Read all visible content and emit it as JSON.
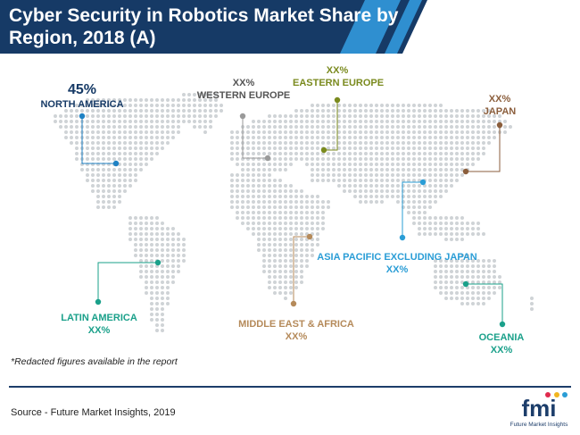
{
  "title": "Cyber Security in Robotics Market Share by Region, 2018 (A)",
  "chart_data": {
    "type": "map",
    "title": "Cyber Security in Robotics Market Share by Region, 2018 (A)",
    "regions": [
      {
        "name": "NORTH AMERICA",
        "value": "45%",
        "color": "#1f82c4"
      },
      {
        "name": "WESTERN EUROPE",
        "value": "XX%",
        "color": "#9a9a9a"
      },
      {
        "name": "EASTERN EUROPE",
        "value": "XX%",
        "color": "#7a8a1e"
      },
      {
        "name": "JAPAN",
        "value": "XX%",
        "color": "#8b5e3c"
      },
      {
        "name": "ASIA PACIFIC EXCLUDING JAPAN",
        "value": "XX%",
        "color": "#2a9dd6"
      },
      {
        "name": "LATIN AMERICA",
        "value": "XX%",
        "color": "#1aa08a"
      },
      {
        "name": "MIDDLE EAST & AFRICA",
        "value": "XX%",
        "color": "#b58a5a"
      },
      {
        "name": "OCEANIA",
        "value": "XX%",
        "color": "#1aa08a"
      }
    ]
  },
  "labels": {
    "na_value": "45%",
    "na_name": "NORTH AMERICA",
    "we_value": "XX%",
    "we_name": "WESTERN EUROPE",
    "ee_value": "XX%",
    "ee_name": "EASTERN EUROPE",
    "jp_value": "XX%",
    "jp_name": "JAPAN",
    "ap_name": "ASIA PACIFIC EXCLUDING JAPAN",
    "ap_value": "XX%",
    "la_name": "LATIN AMERICA",
    "la_value": "XX%",
    "mea_name": "MIDDLE EAST & AFRICA",
    "mea_value": "XX%",
    "oc_name": "OCEANIA",
    "oc_value": "XX%"
  },
  "note": "*Redacted figures available in the report",
  "source": "Source - Future Market Insights, 2019",
  "logo": {
    "brand": "fmi",
    "tagline": "Future Market Insights"
  }
}
